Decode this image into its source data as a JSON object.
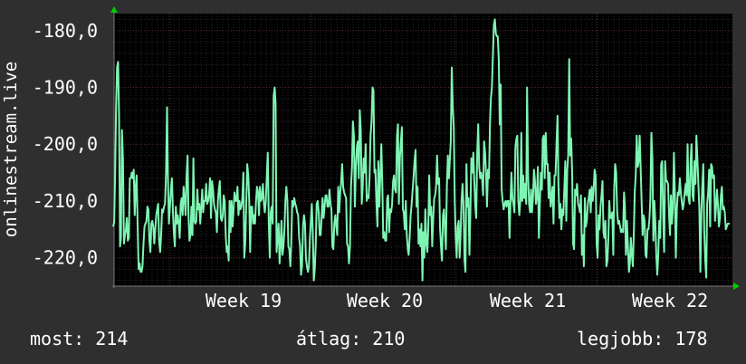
{
  "chart_data": {
    "type": "line",
    "ylabel": "onlinestream.live",
    "ylim": [
      -225,
      -177
    ],
    "ytick_values": [
      -180,
      -190,
      -200,
      -210,
      -220
    ],
    "yticks": [
      "-180,0",
      "-190,0",
      "-200,0",
      "-210,0",
      "-220,0"
    ],
    "xticks": [
      "Week 19",
      "Week 20",
      "Week 21",
      "Week 22"
    ],
    "grid": true,
    "colors": {
      "background": "#2f2f2f",
      "plot": "#000000",
      "line": "#7ff5b4",
      "grid": "#3a3a3a",
      "arrow": "#00cc00"
    },
    "series": [
      {
        "values": [
          -214.5,
          -213.8,
          -205,
          -193.5,
          -186.5,
          -185.5,
          -195,
          -218,
          -216.5,
          -197.5,
          -202.5,
          -217.5,
          -216,
          -215,
          -213,
          -217,
          -216.5,
          -206,
          -206,
          -205,
          -206,
          -204.5,
          -212.5,
          -207.5,
          -205.5,
          -214,
          -222,
          -221,
          -222.5,
          -222.5,
          -221.5,
          -217.5,
          -214.5,
          -214,
          -213.5,
          -211,
          -211.5,
          -217,
          -219,
          -214,
          -213.5,
          -214.5,
          -217.5,
          -215,
          -212.5,
          -211.5,
          -210.5,
          -217,
          -219,
          -216,
          -211.5,
          -212,
          -211,
          -210.5,
          -205,
          -193.5,
          -206,
          -214,
          -211,
          -208,
          -206,
          -211.5,
          -215.5,
          -218,
          -211,
          -214,
          -212.5,
          -214,
          -216.5,
          -210.5,
          -209.5,
          -212.5,
          -207.5,
          -209.5,
          -212.5,
          -205.5,
          -202,
          -212.5,
          -217,
          -216,
          -211,
          -216,
          -202.5,
          -213.5,
          -214,
          -213.5,
          -208,
          -211.5,
          -210.5,
          -214,
          -211,
          -208,
          -212,
          -210,
          -210,
          -207,
          -210.5,
          -210,
          -209,
          -206,
          -213,
          -206.5,
          -208,
          -210.5,
          -211.5,
          -212,
          -215.5,
          -210,
          -208,
          -206.5,
          -213,
          -213.5,
          -212.5,
          -209,
          -210,
          -216,
          -219,
          -218,
          -220.5,
          -210,
          -215.5,
          -210,
          -214.5,
          -211.5,
          -208.5,
          -210,
          -210,
          -207.5,
          -212.5,
          -210,
          -211.5,
          -211,
          -209.5,
          -205,
          -220,
          -217.5,
          -210.5,
          -203.5,
          -205.5,
          -210,
          -219,
          -211,
          -211,
          -214,
          -212.5,
          -214,
          -210,
          -207.5,
          -208.5,
          -212.5,
          -207.5,
          -210,
          -209.5,
          -207,
          -210.5,
          -212,
          -210,
          -205.5,
          -201.5,
          -214,
          -220,
          -212,
          -211,
          -214,
          -191.5,
          -190,
          -193,
          -219,
          -216.5,
          -214,
          -221,
          -218,
          -213.5,
          -219.5,
          -218,
          -215,
          -210,
          -207.5,
          -210,
          -218,
          -218.5,
          -221.5,
          -217.5,
          -210,
          -211,
          -209.5,
          -210.5,
          -211,
          -212,
          -212.5,
          -216.5,
          -218,
          -223,
          -221.5,
          -214.5,
          -212.5,
          -214,
          -220,
          -221.5,
          -222.5,
          -221.5,
          -216.5,
          -213.5,
          -210.5,
          -215.5,
          -224,
          -222,
          -217.5,
          -210.5,
          -210,
          -212,
          -216,
          -216,
          -213,
          -209.5,
          -213,
          -211,
          -209,
          -209,
          -211,
          -211,
          -208,
          -210.5,
          -211.5,
          -218,
          -218.5,
          -214,
          -212.5,
          -214.5,
          -216,
          -207.5,
          -212,
          -208.5,
          -206.5,
          -203.5,
          -207.5,
          -208.5,
          -209,
          -209.5,
          -217.5,
          -218,
          -221,
          -218,
          -207.5,
          -204,
          -196,
          -198.5,
          -211,
          -204,
          -200.5,
          -199.5,
          -206,
          -194,
          -197.5,
          -210.5,
          -207.5,
          -202.5,
          -205,
          -200,
          -210,
          -209,
          -209.5,
          -206,
          -198.5,
          -196,
          -190,
          -190.5,
          -205,
          -204.5,
          -210.5,
          -214.5,
          -203,
          -211,
          -205.5,
          -200,
          -207,
          -216.5,
          -215.5,
          -217,
          -217,
          -209.5,
          -209,
          -215.5,
          -211.5,
          -212,
          -210.5,
          -206.5,
          -205.5,
          -208,
          -208.5,
          -198.5,
          -196.5,
          -210.5,
          -202.5,
          -199.5,
          -197,
          -211.5,
          -212,
          -215,
          -210,
          -216,
          -218.5,
          -219.5,
          -216.5,
          -212.5,
          -210.5,
          -208,
          -205.5,
          -203,
          -201,
          -211,
          -207.5,
          -217.5,
          -215,
          -218,
          -214,
          -224,
          -215.5,
          -220,
          -211.5,
          -217.5,
          -219,
          -214.5,
          -205.5,
          -212.5,
          -211,
          -218,
          -213,
          -209.5,
          -209,
          -207.5,
          -202,
          -207,
          -206,
          -214.5,
          -218,
          -220.5,
          -212.5,
          -211.5,
          -215,
          -218.5,
          -207.5,
          -202,
          -206,
          -203,
          -199.5,
          -186.5,
          -193.5,
          -197,
          -210,
          -216,
          -220,
          -214.5,
          -213.5,
          -220,
          -216,
          -210,
          -207,
          -211,
          -220.5,
          -222.5,
          -203.5,
          -211,
          -209.5,
          -219.5,
          -212.5,
          -202.5,
          -205,
          -201.5,
          -206.5,
          -211,
          -213,
          -201.5,
          -196.5,
          -204,
          -206,
          -205,
          -206,
          -209,
          -199.5,
          -201.5,
          -205,
          -211,
          -204.5,
          -206,
          -196.5,
          -192,
          -190,
          -184.5,
          -179,
          -178,
          -180.5,
          -181,
          -181,
          -185,
          -196.5,
          -189.5,
          -208,
          -210,
          -211.5,
          -210.5,
          -210,
          -211,
          -210,
          -210,
          -216.5,
          -210,
          -205,
          -209.5,
          -210.5,
          -212,
          -200.5,
          -199,
          -198.5,
          -210,
          -212.5,
          -210,
          -198,
          -210,
          -205.5,
          -209.5,
          -207,
          -210.5,
          -190,
          -205.5,
          -210.5,
          -212,
          -208,
          -212,
          -209.5,
          -204.5,
          -206.5,
          -210.5,
          -209,
          -204,
          -216.5,
          -210.5,
          -205,
          -208,
          -199,
          -198.5,
          -206,
          -198,
          -203.5,
          -203.5,
          -209.5,
          -205,
          -211,
          -209.5,
          -207.5,
          -214,
          -205.5,
          -205.5,
          -200,
          -195,
          -207,
          -213,
          -210.5,
          -215,
          -211.5,
          -212.5,
          -208,
          -203,
          -213.5,
          -204.5,
          -202,
          -185,
          -202,
          -199,
          -205,
          -217.5,
          -218.5,
          -208,
          -209,
          -207,
          -210.5,
          -211,
          -212,
          -209,
          -219.5,
          -216,
          -221.5,
          -209.5,
          -214.5,
          -213.5,
          -210.5,
          -209.5,
          -208,
          -212,
          -207.5,
          -210,
          -208,
          -204.5,
          -205.5,
          -217.5,
          -220,
          -212.5,
          -215,
          -211,
          -209,
          -206.5,
          -215.5,
          -216.5,
          -213.5,
          -221.5,
          -220.5,
          -216.5,
          -210,
          -213,
          -213,
          -212,
          -219.5,
          -208,
          -203.5,
          -205,
          -212,
          -214,
          -213.5,
          -214.5,
          -215.5,
          -215,
          -215.5,
          -208.5,
          -211,
          -219.5,
          -213.5,
          -218,
          -222.5,
          -221,
          -216.5,
          -219.5,
          -221.5,
          -215.5,
          -208.5,
          -205.5,
          -198.5,
          -204,
          -203,
          -198.5,
          -204,
          -210,
          -216,
          -212.5,
          -213.5,
          -219.5,
          -220,
          -215,
          -215,
          -213,
          -209.5,
          -198,
          -202.5,
          -217,
          -210,
          -213.5,
          -219.5,
          -223,
          -219.5,
          -213.5,
          -216.5,
          -203.5,
          -203,
          -212.5,
          -219,
          -203,
          -206.5,
          -206.5,
          -207,
          -212.5,
          -216,
          -209,
          -214,
          -211,
          -201.5,
          -209,
          -220,
          -211.5,
          -208.5,
          -209,
          -206,
          -208.5,
          -210,
          -211.5,
          -210.5,
          -208.5,
          -207,
          -209,
          -200,
          -209.5,
          -210.5,
          -203,
          -200,
          -209,
          -210,
          -203,
          -207,
          -198.5,
          -202.5,
          -207,
          -211.5,
          -222.5,
          -212,
          -207.5,
          -203.5,
          -215.5,
          -220.5,
          -223.5,
          -210.5,
          -208.5,
          -204.5,
          -214.5,
          -203.5,
          -204,
          -206,
          -205.5,
          -213.5,
          -211,
          -208,
          -210.5,
          -214.5,
          -213,
          -209,
          -207.5,
          -211.5,
          -211,
          -212,
          -215,
          -214.5,
          -214,
          -214,
          -214
        ]
      }
    ]
  },
  "footer": {
    "current_label": "most:",
    "current_value": "214",
    "average_label": "átlag:",
    "average_value": "210",
    "best_label": "legjobb:",
    "best_value": "178"
  }
}
